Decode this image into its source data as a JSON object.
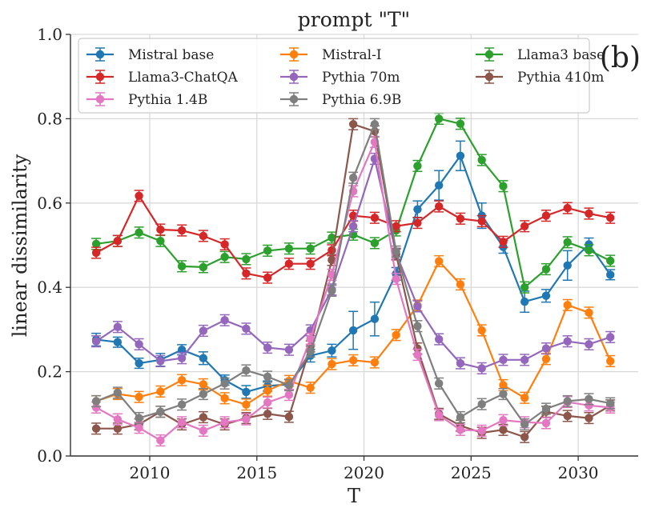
{
  "chart_data": {
    "type": "line",
    "title": "prompt \"T\"",
    "panel_label": "(b)",
    "xlabel": "T",
    "ylabel": "linear dissimilarity",
    "xlim": [
      2006.3,
      2032.8
    ],
    "ylim": [
      0.0,
      1.0
    ],
    "xticks": [
      2010,
      2015,
      2020,
      2025,
      2030
    ],
    "yticks": [
      0.0,
      0.2,
      0.4,
      0.6,
      0.8,
      1.0
    ],
    "ytick_labels": [
      "0.0",
      "0.2",
      "0.4",
      "0.6",
      "0.8",
      "1.0"
    ],
    "grid": true,
    "legend_position": "top",
    "legend_columns": 3,
    "error_bars": true,
    "x": [
      2007.5,
      2008.5,
      2009.5,
      2010.5,
      2011.5,
      2012.5,
      2013.5,
      2014.5,
      2015.5,
      2016.5,
      2017.5,
      2018.5,
      2019.5,
      2020.5,
      2021.5,
      2022.5,
      2023.5,
      2024.5,
      2025.5,
      2026.5,
      2027.5,
      2028.5,
      2029.5,
      2030.5,
      2031.5
    ],
    "series": [
      {
        "name": "Mistral base",
        "color": "#1f77b4",
        "values": [
          0.276,
          0.27,
          0.22,
          0.228,
          0.252,
          0.232,
          0.18,
          0.152,
          0.166,
          0.17,
          0.238,
          0.25,
          0.298,
          0.325,
          0.432,
          0.585,
          0.642,
          0.712,
          0.57,
          0.496,
          0.366,
          0.38,
          0.452,
          0.502,
          0.43
        ],
        "errors": [
          0.015,
          0.012,
          0.012,
          0.015,
          0.012,
          0.015,
          0.012,
          0.015,
          0.012,
          0.012,
          0.015,
          0.015,
          0.045,
          0.04,
          0.015,
          0.02,
          0.035,
          0.035,
          0.03,
          0.015,
          0.025,
          0.015,
          0.035,
          0.015,
          0.012
        ]
      },
      {
        "name": "Mistral-I",
        "color": "#ff7f0e",
        "values": [
          0.13,
          0.147,
          0.14,
          0.153,
          0.18,
          0.17,
          0.137,
          0.122,
          0.155,
          0.178,
          0.162,
          0.218,
          0.227,
          0.222,
          0.287,
          0.357,
          0.462,
          0.407,
          0.298,
          0.168,
          0.138,
          0.23,
          0.358,
          0.34,
          0.225
        ]
      },
      {
        "name": "Llama3 base",
        "color": "#2ca02c",
        "values": [
          0.503,
          0.51,
          0.53,
          0.51,
          0.45,
          0.448,
          0.472,
          0.467,
          0.487,
          0.492,
          0.492,
          0.518,
          0.525,
          0.505,
          0.535,
          0.688,
          0.8,
          0.788,
          0.702,
          0.64,
          0.4,
          0.443,
          0.507,
          0.488,
          0.463
        ]
      },
      {
        "name": "Llama3-ChatQA",
        "color": "#d62728",
        "values": [
          0.482,
          0.51,
          0.617,
          0.537,
          0.535,
          0.522,
          0.502,
          0.433,
          0.423,
          0.456,
          0.456,
          0.488,
          0.57,
          0.565,
          0.545,
          0.553,
          0.592,
          0.563,
          0.557,
          0.508,
          0.545,
          0.57,
          0.588,
          0.575,
          0.565
        ]
      },
      {
        "name": "Pythia 70m",
        "color": "#9467bd",
        "values": [
          0.272,
          0.306,
          0.265,
          0.225,
          0.232,
          0.297,
          0.322,
          0.302,
          0.257,
          0.252,
          0.298,
          0.395,
          0.545,
          0.705,
          0.48,
          0.355,
          0.277,
          0.22,
          0.208,
          0.228,
          0.228,
          0.255,
          0.272,
          0.265,
          0.282
        ]
      },
      {
        "name": "Pythia 410m",
        "color": "#8c564b",
        "values": [
          0.065,
          0.065,
          0.075,
          0.105,
          0.075,
          0.092,
          0.075,
          0.09,
          0.1,
          0.093,
          0.26,
          0.465,
          0.787,
          0.77,
          0.478,
          0.255,
          0.1,
          0.072,
          0.055,
          0.062,
          0.045,
          0.105,
          0.095,
          0.09,
          0.12
        ]
      },
      {
        "name": "Pythia 1.4B",
        "color": "#e377c2",
        "values": [
          0.115,
          0.087,
          0.067,
          0.037,
          0.08,
          0.06,
          0.08,
          0.087,
          0.127,
          0.145,
          0.278,
          0.43,
          0.628,
          0.745,
          0.42,
          0.24,
          0.097,
          0.062,
          0.06,
          0.085,
          0.08,
          0.078,
          0.128,
          0.12,
          0.115
        ]
      },
      {
        "name": "Pythia 6.9B",
        "color": "#7f7f7f",
        "values": [
          0.13,
          0.15,
          0.09,
          0.105,
          0.122,
          0.147,
          0.172,
          0.203,
          0.188,
          0.168,
          0.248,
          0.392,
          0.66,
          0.787,
          0.485,
          0.308,
          0.172,
          0.092,
          0.123,
          0.147,
          0.075,
          0.112,
          0.13,
          0.135,
          0.125
        ]
      }
    ]
  }
}
